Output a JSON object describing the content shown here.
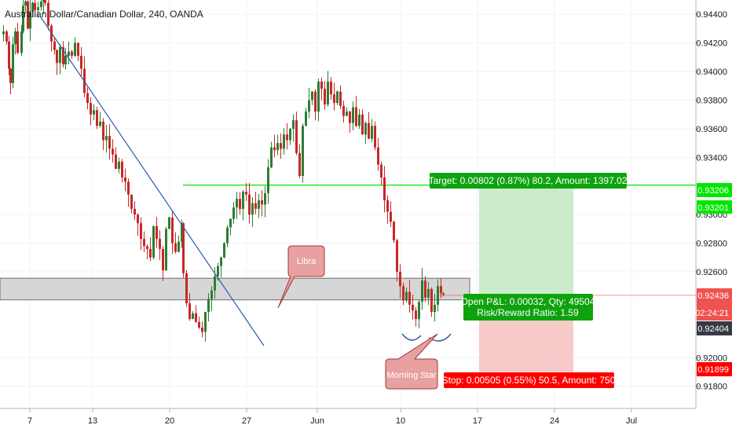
{
  "header": {
    "symbol_title": "Australian Dollar/Canadian Dollar, 240, OANDA"
  },
  "colors": {
    "up": "#26a69a",
    "down": "#ef5350",
    "candle_up": "#2e7d32",
    "candle_down": "#c62828",
    "target_line": "#00e600",
    "trendline": "#2a5ca8",
    "zone_fill": "#d6d6d6",
    "zone_border": "#6d6d6d",
    "callout_fill": "#e8a0a0",
    "callout_border": "#9a3b3b",
    "target_label": "#0ea30e",
    "stop_label": "#ff0000",
    "price_current": "#ef5350",
    "price_dark": "#363a45"
  },
  "annotations": {
    "libra_label": "Libra",
    "morning_star_label": "Morning Star",
    "target_text": "Target: 0.00802 (0.87%) 80.2, Amount: 1397.02",
    "stop_text": "Stop: 0.00505 (0.55%) 50.5, Amount: 750",
    "open_pnl_text": "Open P&L: 0.00032, Qty: 49504",
    "risk_reward_text": "Risk/Reward Ratio: 1.59"
  },
  "price_tags": {
    "target_price": "0.93206",
    "target_price_2": "0.93201",
    "current_price": "0.92436",
    "countdown": "02:24:21",
    "entry_price": "0.92404",
    "stop_price": "0.91899"
  },
  "chart_data": {
    "type": "candlestick",
    "title": "Australian Dollar/Canadian Dollar, 240, OANDA",
    "instrument": "AUDCAD",
    "timeframe": "240",
    "source": "OANDA",
    "x_ticks": [
      "7",
      "13",
      "20",
      "27",
      "Jun",
      "10",
      "17",
      "24",
      "Jul"
    ],
    "y_ticks": [
      "0.94400",
      "0.94200",
      "0.94000",
      "0.93800",
      "0.93600",
      "0.93400",
      "0.93000",
      "0.92800",
      "0.92600",
      "0.92000",
      "0.91800"
    ],
    "ylim": [
      0.9165,
      0.9463
    ],
    "grid": true,
    "close_path": [
      [
        0,
        0.9426
      ],
      [
        3,
        0.9428
      ],
      [
        7,
        0.9421
      ],
      [
        10,
        0.9402
      ],
      [
        12,
        0.9392
      ],
      [
        15,
        0.9419
      ],
      [
        18,
        0.9428
      ],
      [
        21,
        0.9413
      ],
      [
        26,
        0.9428
      ],
      [
        28,
        0.9446
      ],
      [
        31,
        0.9449
      ],
      [
        34,
        0.943
      ],
      [
        37,
        0.9442
      ],
      [
        40,
        0.9448
      ],
      [
        43,
        0.9443
      ],
      [
        47,
        0.9445
      ],
      [
        51,
        0.9449
      ],
      [
        54,
        0.945
      ],
      [
        56,
        0.9448
      ],
      [
        60,
        0.9432
      ],
      [
        64,
        0.9421
      ],
      [
        68,
        0.9415
      ],
      [
        71,
        0.9406
      ],
      [
        75,
        0.9417
      ],
      [
        79,
        0.9405
      ],
      [
        82,
        0.9411
      ],
      [
        86,
        0.9414
      ],
      [
        90,
        0.9411
      ],
      [
        94,
        0.942
      ],
      [
        98,
        0.9411
      ],
      [
        102,
        0.9402
      ],
      [
        106,
        0.9385
      ],
      [
        110,
        0.9378
      ],
      [
        114,
        0.937
      ],
      [
        118,
        0.9373
      ],
      [
        122,
        0.9362
      ],
      [
        126,
        0.9365
      ],
      [
        130,
        0.9352
      ],
      [
        134,
        0.9355
      ],
      [
        138,
        0.9346
      ],
      [
        142,
        0.9342
      ],
      [
        146,
        0.9332
      ],
      [
        150,
        0.9337
      ],
      [
        154,
        0.9326
      ],
      [
        158,
        0.9323
      ],
      [
        162,
        0.9314
      ],
      [
        166,
        0.9304
      ],
      [
        170,
        0.93
      ],
      [
        174,
        0.9294
      ],
      [
        178,
        0.9283
      ],
      [
        182,
        0.9278
      ],
      [
        186,
        0.9276
      ],
      [
        190,
        0.927
      ],
      [
        194,
        0.9292
      ],
      [
        198,
        0.9283
      ],
      [
        202,
        0.9276
      ],
      [
        206,
        0.9261
      ],
      [
        210,
        0.929
      ],
      [
        214,
        0.9298
      ],
      [
        218,
        0.928
      ],
      [
        222,
        0.9274
      ],
      [
        226,
        0.9281
      ],
      [
        230,
        0.9294
      ],
      [
        232,
        0.9259
      ],
      [
        236,
        0.9238
      ],
      [
        240,
        0.9227
      ],
      [
        244,
        0.9231
      ],
      [
        248,
        0.9225
      ],
      [
        252,
        0.9221
      ],
      [
        256,
        0.9218
      ],
      [
        260,
        0.9232
      ],
      [
        264,
        0.9241
      ],
      [
        268,
        0.9247
      ],
      [
        272,
        0.9257
      ],
      [
        276,
        0.9264
      ],
      [
        280,
        0.927
      ],
      [
        284,
        0.928
      ],
      [
        288,
        0.9291
      ],
      [
        292,
        0.9297
      ],
      [
        296,
        0.9305
      ],
      [
        300,
        0.9311
      ],
      [
        304,
        0.9304
      ],
      [
        308,
        0.9316
      ],
      [
        312,
        0.9314
      ],
      [
        316,
        0.93
      ],
      [
        320,
        0.9308
      ],
      [
        324,
        0.9304
      ],
      [
        328,
        0.931
      ],
      [
        332,
        0.9307
      ],
      [
        336,
        0.9315
      ],
      [
        340,
        0.9333
      ],
      [
        344,
        0.9347
      ],
      [
        348,
        0.9345
      ],
      [
        352,
        0.935
      ],
      [
        356,
        0.9346
      ],
      [
        360,
        0.9356
      ],
      [
        364,
        0.9352
      ],
      [
        368,
        0.936
      ],
      [
        372,
        0.9366
      ],
      [
        376,
        0.9343
      ],
      [
        380,
        0.9327
      ],
      [
        384,
        0.9362
      ],
      [
        388,
        0.9372
      ],
      [
        392,
        0.938
      ],
      [
        396,
        0.9386
      ],
      [
        400,
        0.9372
      ],
      [
        404,
        0.9393
      ],
      [
        408,
        0.9388
      ],
      [
        412,
        0.9377
      ],
      [
        416,
        0.9393
      ],
      [
        420,
        0.9384
      ],
      [
        424,
        0.9378
      ],
      [
        428,
        0.9386
      ],
      [
        432,
        0.9376
      ],
      [
        436,
        0.9369
      ],
      [
        440,
        0.9372
      ],
      [
        444,
        0.9364
      ],
      [
        448,
        0.9375
      ],
      [
        452,
        0.9362
      ],
      [
        456,
        0.937
      ],
      [
        460,
        0.9356
      ],
      [
        464,
        0.9364
      ],
      [
        468,
        0.9353
      ],
      [
        472,
        0.9362
      ],
      [
        476,
        0.9347
      ],
      [
        480,
        0.9335
      ],
      [
        484,
        0.9326
      ],
      [
        488,
        0.931
      ],
      [
        492,
        0.9302
      ],
      [
        496,
        0.9295
      ],
      [
        500,
        0.9282
      ],
      [
        504,
        0.926
      ],
      [
        508,
        0.925
      ],
      [
        512,
        0.924
      ],
      [
        516,
        0.9246
      ],
      [
        520,
        0.9237
      ],
      [
        524,
        0.9233
      ],
      [
        528,
        0.9227
      ],
      [
        532,
        0.9239
      ],
      [
        536,
        0.9254
      ],
      [
        540,
        0.9242
      ],
      [
        544,
        0.9248
      ],
      [
        548,
        0.9232
      ],
      [
        552,
        0.9237
      ],
      [
        556,
        0.925
      ],
      [
        560,
        0.9245
      ],
      [
        563,
        0.9244
      ]
    ],
    "range_bars_pixel_note": "none",
    "trendline": {
      "from_date": "7",
      "to_date": "27"
    },
    "support_zone": [
      0.92404,
      0.92555
    ],
    "target_level": 0.93206,
    "entry_level": 0.92404,
    "stop_level": 0.91899,
    "position": {
      "target": "Target: 0.00802 (0.87%) 80.2, Amount: 1397.02",
      "stop": "Stop: 0.00505 (0.55%) 50.5, Amount: 750",
      "open_pnl": "Open P&L: 0.00032, Qty: 49504",
      "risk_reward": "Risk/Reward Ratio: 1.59"
    }
  }
}
